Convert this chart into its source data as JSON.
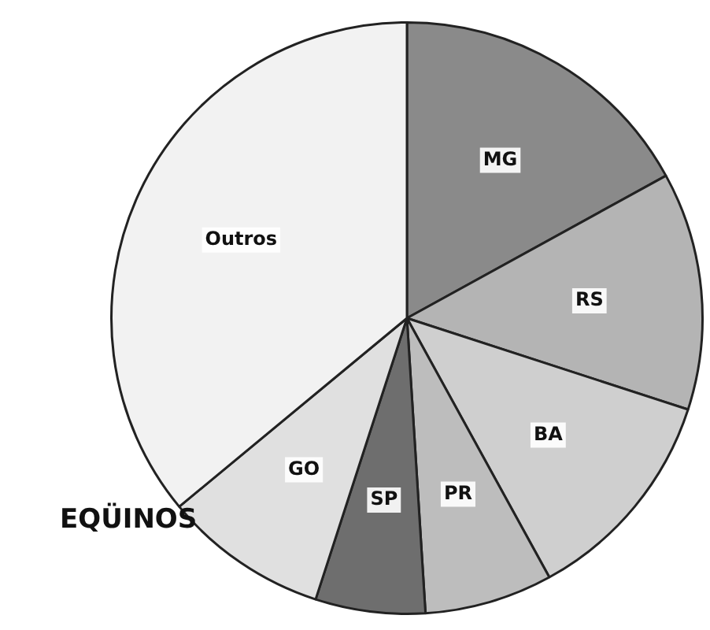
{
  "chart_data": {
    "type": "pie",
    "title": "EQÜINOS",
    "categories": [
      "MG",
      "RS",
      "BA",
      "PR",
      "SP",
      "GO",
      "Outros"
    ],
    "values": [
      17,
      13,
      12,
      7,
      6,
      9,
      36
    ],
    "colors": [
      "#8a8a8a",
      "#b4b4b4",
      "#cfcfcf",
      "#bdbdbd",
      "#6e6e6e",
      "#e0e0e0",
      "#f2f2f2"
    ],
    "legend": false
  }
}
